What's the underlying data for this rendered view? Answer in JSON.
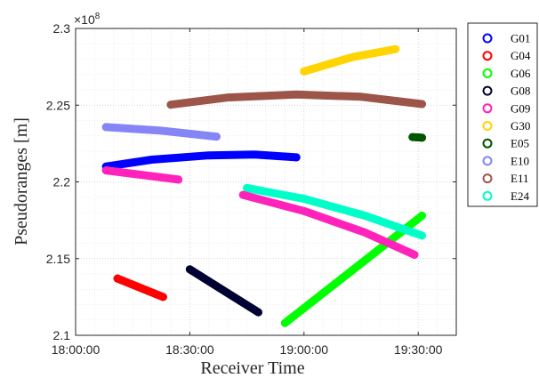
{
  "chart_data": {
    "type": "scatter",
    "xlabel": "Receiver Time",
    "ylabel": "Pseudoranges [m]",
    "y_exponent": {
      "base": "×10",
      "power": "8"
    },
    "x_ticks": [
      "18:00:00",
      "18:30:00",
      "19:00:00",
      "19:30:00"
    ],
    "x_tick_values_min": [
      0,
      30,
      60,
      90
    ],
    "xlim_min": [
      0,
      100
    ],
    "y_ticks": [
      "2.1",
      "2.15",
      "2.2",
      "2.25",
      "2.3"
    ],
    "y_tick_values": [
      2.1,
      2.15,
      2.2,
      2.25,
      2.3
    ],
    "ylim": [
      2.1,
      2.3
    ],
    "grid": true,
    "grid_style": "dotted",
    "legend_position": "outside-right",
    "legend_marker": "circle",
    "series": [
      {
        "name": "G01",
        "color": "#0000ff",
        "points": [
          [
            8,
            2.21
          ],
          [
            20,
            2.2145
          ],
          [
            35,
            2.2173
          ],
          [
            47,
            2.2178
          ],
          [
            58,
            2.216
          ]
        ]
      },
      {
        "name": "G04",
        "color": "#ff0000",
        "points": [
          [
            11,
            2.137
          ],
          [
            23,
            2.125
          ]
        ]
      },
      {
        "name": "G06",
        "color": "#00ff00",
        "points": [
          [
            55,
            2.108
          ],
          [
            91,
            2.178
          ]
        ]
      },
      {
        "name": "G08",
        "color": "#000033",
        "points": [
          [
            30,
            2.143
          ],
          [
            48,
            2.115
          ]
        ]
      },
      {
        "name": "G09",
        "color": "#ff22bb",
        "points": [
          [
            8,
            2.2075
          ],
          [
            27,
            2.2015
          ]
        ]
      },
      {
        "name": "G30",
        "color": "#ffd400",
        "points": [
          [
            60,
            2.272
          ],
          [
            73,
            2.2815
          ],
          [
            84,
            2.2865
          ]
        ]
      },
      {
        "name": "E05",
        "color": "#005500",
        "points": [
          [
            88.5,
            2.2292
          ],
          [
            91,
            2.2288
          ]
        ]
      },
      {
        "name": "E10",
        "color": "#8585f5",
        "points": [
          [
            8,
            2.2357
          ],
          [
            22,
            2.2335
          ],
          [
            37,
            2.2295
          ]
        ]
      },
      {
        "name": "E11",
        "color": "#9c5548",
        "points": [
          [
            25,
            2.2503
          ],
          [
            40,
            2.255
          ],
          [
            58,
            2.257
          ],
          [
            75,
            2.2555
          ],
          [
            91,
            2.2507
          ]
        ]
      },
      {
        "name": "E24",
        "color": "#00ffc8",
        "points": [
          [
            45,
            2.196
          ],
          [
            60,
            2.189
          ],
          [
            76,
            2.178
          ],
          [
            91,
            2.165
          ]
        ]
      },
      {
        "name": "G09",
        "color": "#ff22bb",
        "points": [
          [
            44,
            2.1915
          ],
          [
            60,
            2.181
          ],
          [
            76,
            2.167
          ],
          [
            89,
            2.1525
          ]
        ]
      }
    ],
    "legend": [
      "G01",
      "G04",
      "G06",
      "G08",
      "G09",
      "G30",
      "E05",
      "E10",
      "E11",
      "E24"
    ]
  }
}
